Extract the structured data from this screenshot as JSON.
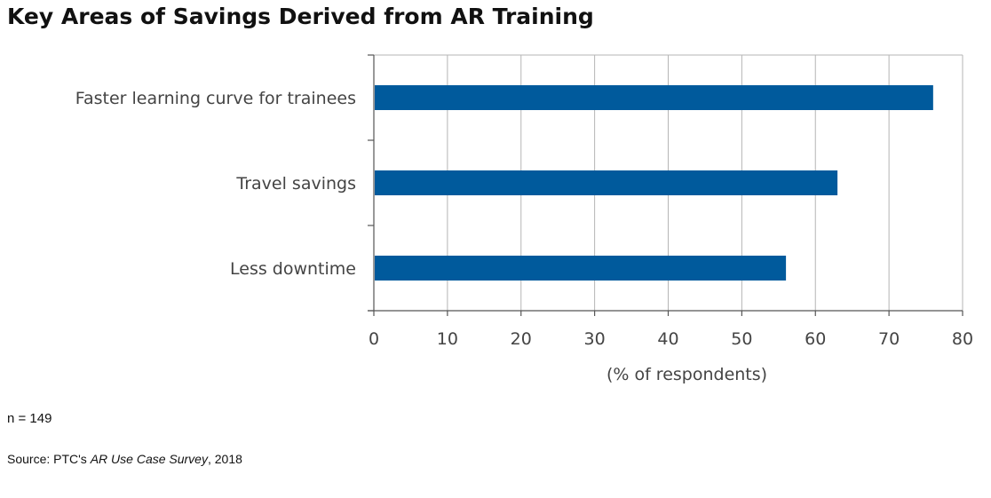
{
  "chart_data": {
    "type": "bar",
    "orientation": "horizontal",
    "title": "Key Areas of Savings Derived from AR Training",
    "categories": [
      "Faster learning curve for trainees",
      "Travel savings",
      "Less downtime"
    ],
    "values": [
      76,
      63,
      56
    ],
    "xlabel": "(% of respondents)",
    "ylabel": "",
    "xlim": [
      0,
      80
    ],
    "xticks": [
      0,
      10,
      20,
      30,
      40,
      50,
      60,
      70,
      80
    ],
    "grid": true,
    "legend": "none",
    "bar_color": "#005a9c"
  },
  "notes": {
    "n": "n = 149",
    "source_prefix": "Source: PTC's ",
    "source_title": "AR Use Case Survey",
    "source_suffix": ", 2018"
  }
}
